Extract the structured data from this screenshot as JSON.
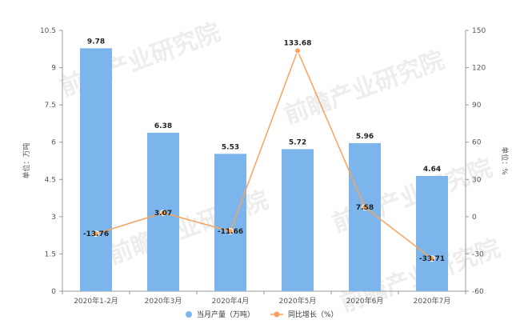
{
  "chart_data": {
    "type": "bar",
    "categories": [
      "2020年1-2月",
      "2020年3月",
      "2020年4月",
      "2020年5月",
      "2020年6月",
      "2020年7月"
    ],
    "series": [
      {
        "name": "当月产量（万吨）",
        "type": "bar",
        "axis": "left",
        "values": [
          9.78,
          6.38,
          5.53,
          5.72,
          5.96,
          4.64
        ],
        "labels": [
          "9.78",
          "6.38",
          "5.53",
          "5.72",
          "5.96",
          "4.64"
        ],
        "color": "#7cb5ec"
      },
      {
        "name": "同比增长（%）",
        "type": "line",
        "axis": "right",
        "values": [
          -13.76,
          3.07,
          -11.66,
          133.68,
          7.58,
          -33.71
        ],
        "labels": [
          "-13.76",
          "3.07",
          "-11.66",
          "133.68",
          "7.58",
          "-33.71"
        ],
        "color": "#f7a35c"
      }
    ],
    "left_axis": {
      "title": "单位：万吨",
      "min": 0,
      "max": 10.5,
      "ticks": [
        0,
        1.5,
        3,
        4.5,
        6,
        7.5,
        9,
        10.5
      ],
      "tick_labels": [
        "0",
        "1.5",
        "3",
        "4.5",
        "6",
        "7.5",
        "9",
        "10.5"
      ]
    },
    "right_axis": {
      "title": "单位：%",
      "min": -60,
      "max": 150,
      "ticks": [
        -60,
        -30,
        0,
        30,
        60,
        90,
        120,
        150
      ],
      "tick_labels": [
        "-60",
        "-30",
        "0",
        "30",
        "60",
        "90",
        "120",
        "150"
      ]
    },
    "grid": false,
    "legend": "bottom-center",
    "watermark": "前瞻产业研究院"
  }
}
